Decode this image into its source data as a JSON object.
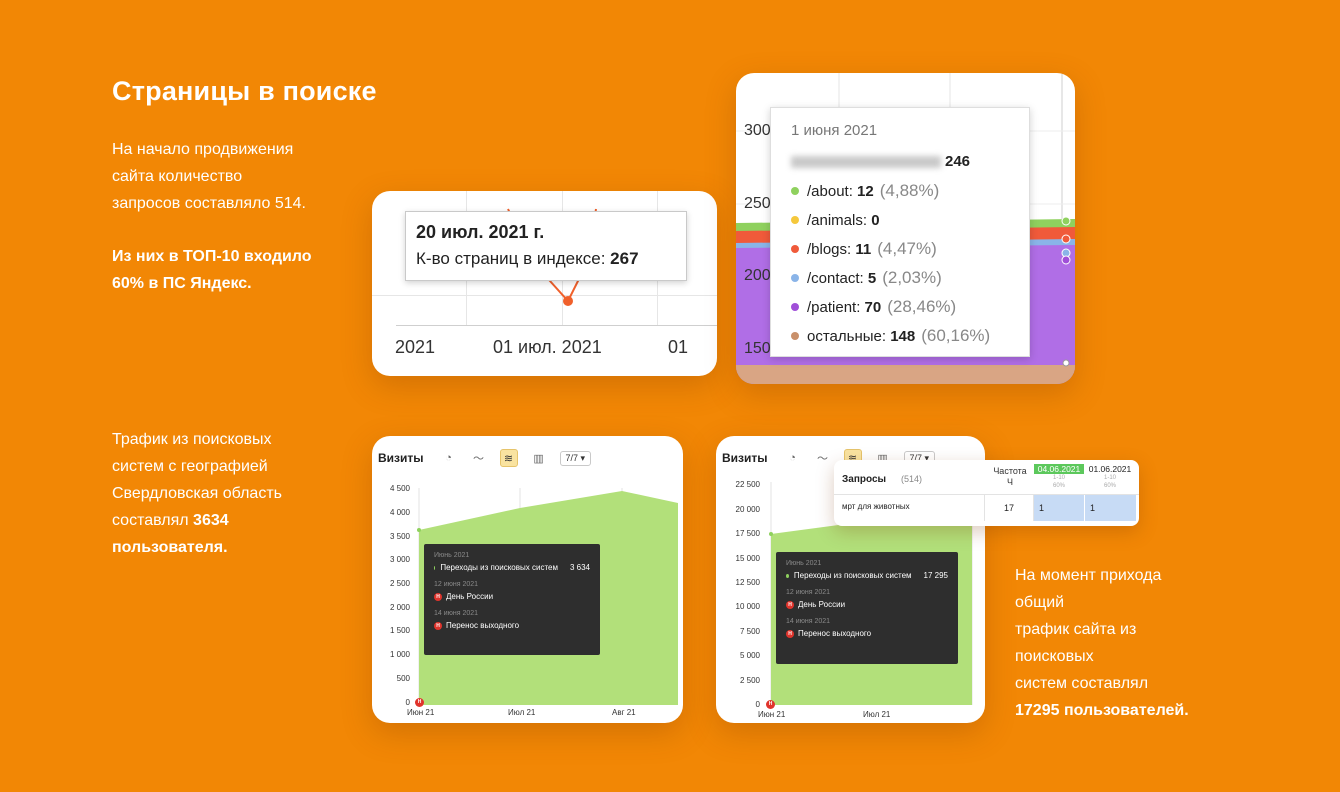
{
  "title": "Страницы в поиске",
  "intro": {
    "line1": "На начало продвижения",
    "line2": "сайта количество",
    "line3": "запросов составляло 514.",
    "bold1": "Из них в ТОП-10 входило",
    "bold2": "60%  в ПС Яндекс."
  },
  "traffic_region": {
    "line1": "Трафик из поисковых",
    "line2": "систем  с географией",
    "line3": "Свердловская область",
    "line4": "составлял ",
    "line4_bold": "3634",
    "line5_bold": "пользователя."
  },
  "traffic_total": {
    "line1": "На момент прихода",
    "line2": "общий",
    "line3": "трафик сайта из",
    "line4": "поисковых",
    "line5": "систем составлял",
    "line6_bold": "17295 пользователей."
  },
  "index_chart": {
    "tooltip_date": "20 июл. 2021 г.",
    "tooltip_label": "К-во страниц в индексе: ",
    "tooltip_value": "267",
    "x_labels": [
      "2021",
      "01 июл. 2021",
      "01"
    ],
    "line_color": "#f0602b"
  },
  "pages_chart": {
    "y_labels": [
      "300",
      "250",
      "200",
      "150"
    ],
    "date": "1 июня 2021",
    "total": "246",
    "rows": [
      {
        "path": "/about: ",
        "value": "12",
        "pct": "(4,88%)",
        "color": "#8fd15e"
      },
      {
        "path": "/animals: ",
        "value": "0",
        "pct": "",
        "color": "#f5c83c"
      },
      {
        "path": "/blogs: ",
        "value": "11",
        "pct": "(4,47%)",
        "color": "#f05a3a"
      },
      {
        "path": "/contact: ",
        "value": "5",
        "pct": "(2,03%)",
        "color": "#8ab4e8"
      },
      {
        "path": "/patient: ",
        "value": "70",
        "pct": "(28,46%)",
        "color": "#a04fd8"
      },
      {
        "path": "остальные: ",
        "value": "148",
        "pct": "(60,16%)",
        "color": "#c9906a"
      }
    ]
  },
  "visits_region": {
    "title": "Визиты",
    "selector": "7/7",
    "y_labels": [
      "4 500",
      "4 000",
      "3 500",
      "3 000",
      "2 500",
      "2 000",
      "1 500",
      "1 000",
      "500",
      "0"
    ],
    "x_labels": [
      "Июн 21",
      "Июл 21",
      "Авг 21"
    ],
    "tooltip": {
      "period": "Июнь 2021",
      "series": "Переходы из поисковых систем",
      "value": "3 634",
      "event1_date": "12 июня 2021",
      "event1": "День России",
      "event2_date": "14 июня 2021",
      "event2": "Перенос выходного"
    }
  },
  "visits_total": {
    "title": "Визиты",
    "selector": "7/7",
    "y_labels": [
      "22 500",
      "20 000",
      "17 500",
      "15 000",
      "12 500",
      "10 000",
      "7 500",
      "5 000",
      "2 500",
      "0"
    ],
    "x_labels": [
      "Июн 21",
      "Июл 21"
    ],
    "tooltip": {
      "period": "Июнь 2021",
      "series": "Переходы из поисковых систем",
      "value": "17 295",
      "event1_date": "12 июня 2021",
      "event1": "День России",
      "event2_date": "14 июня 2021",
      "event2": "Перенос выходного"
    }
  },
  "queries_table": {
    "header": "Запросы",
    "count": "(514)",
    "freq_label": "Частота",
    "freq_sub": "Ч",
    "date1": "04.06.2021",
    "date1_sub1": "1-10",
    "date1_sub2": "60%",
    "date2": "01.06.2021",
    "date2_sub1": "1-10",
    "date2_sub2": "60%",
    "row_query": "мрт для животных",
    "row_freq": "17",
    "row_pos1": "1",
    "row_pos2": "1"
  }
}
